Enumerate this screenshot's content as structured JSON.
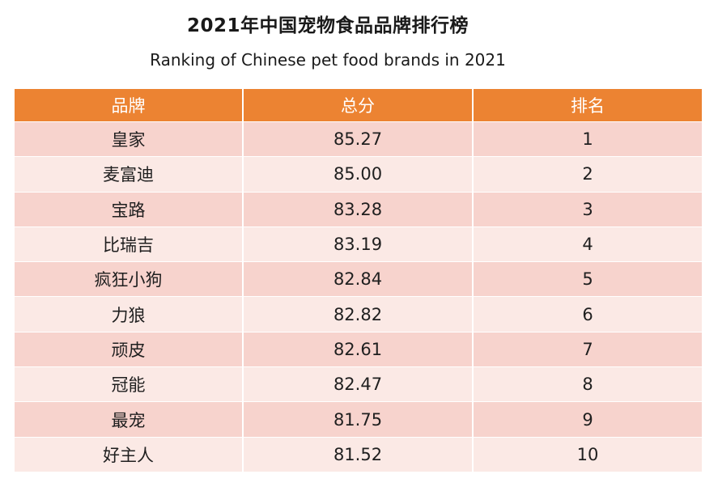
{
  "title_cn": "2021年中国宠物食品品牌排行榜",
  "title_en": "Ranking of Chinese pet food brands in 2021",
  "colors": {
    "header_bg": "#ec8332",
    "header_text": "#ffffff",
    "row_odd": "#f7d3cd",
    "row_even": "#fbe9e5"
  },
  "chart_data": {
    "type": "table",
    "title": "2021年中国宠物食品品牌排行榜",
    "subtitle": "Ranking of Chinese pet food brands in 2021",
    "columns": [
      "品牌",
      "总分",
      "排名"
    ],
    "rows": [
      [
        "皇家",
        "85.27",
        "1"
      ],
      [
        "麦富迪",
        "85.00",
        "2"
      ],
      [
        "宝路",
        "83.28",
        "3"
      ],
      [
        "比瑞吉",
        "83.19",
        "4"
      ],
      [
        "疯狂小狗",
        "82.84",
        "5"
      ],
      [
        "力狼",
        "82.82",
        "6"
      ],
      [
        "顽皮",
        "82.61",
        "7"
      ],
      [
        "冠能",
        "82.47",
        "8"
      ],
      [
        "最宠",
        "81.75",
        "9"
      ],
      [
        "好主人",
        "81.52",
        "10"
      ]
    ]
  }
}
